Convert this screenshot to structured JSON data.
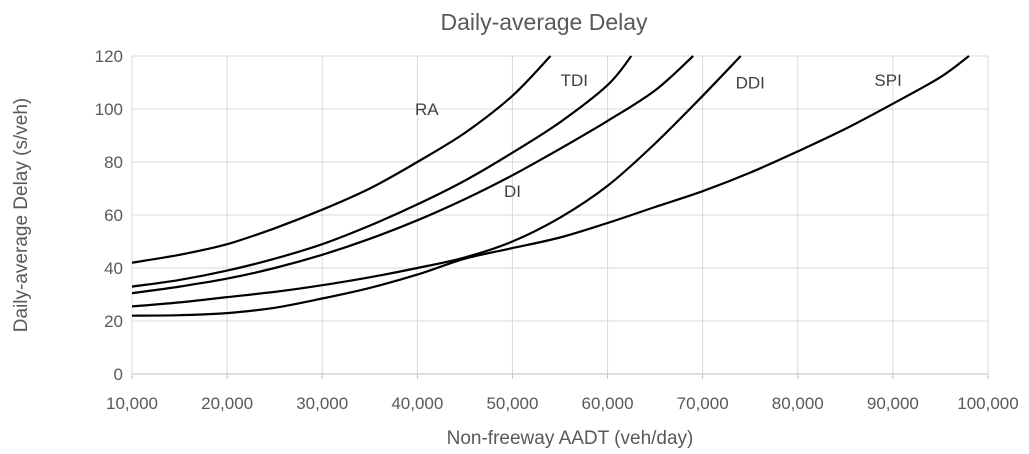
{
  "chart_data": {
    "type": "line",
    "title": "Daily-average Delay",
    "xlabel": "Non-freeway AADT (veh/day)",
    "ylabel": "Daily-average Delay (s/veh)",
    "xlim": [
      10000,
      100000
    ],
    "ylim": [
      0,
      120
    ],
    "x_ticks": [
      10000,
      20000,
      30000,
      40000,
      50000,
      60000,
      70000,
      80000,
      90000,
      100000
    ],
    "x_tick_labels": [
      "10,000",
      "20,000",
      "30,000",
      "40,000",
      "50,000",
      "60,000",
      "70,000",
      "80,000",
      "90,000",
      "100,000"
    ],
    "y_ticks": [
      0,
      20,
      40,
      60,
      80,
      100,
      120
    ],
    "y_tick_labels": [
      "0",
      "20",
      "40",
      "60",
      "80",
      "100",
      "120"
    ],
    "grid": true,
    "legend": "none",
    "series": [
      {
        "name": "RA",
        "label_at": [
          41000,
          100
        ],
        "points": [
          [
            10000,
            42
          ],
          [
            15000,
            45
          ],
          [
            20000,
            49
          ],
          [
            25000,
            55
          ],
          [
            30000,
            62
          ],
          [
            35000,
            70
          ],
          [
            40000,
            80
          ],
          [
            45000,
            91
          ],
          [
            50000,
            105
          ],
          [
            54000,
            120
          ]
        ]
      },
      {
        "name": "TDI",
        "label_at": [
          56500,
          111
        ],
        "points": [
          [
            10000,
            33
          ],
          [
            15000,
            35.5
          ],
          [
            20000,
            39
          ],
          [
            25000,
            43.5
          ],
          [
            30000,
            49
          ],
          [
            35000,
            56
          ],
          [
            40000,
            64
          ],
          [
            45000,
            73
          ],
          [
            50000,
            83.5
          ],
          [
            55000,
            95
          ],
          [
            60000,
            109
          ],
          [
            62500,
            120
          ]
        ]
      },
      {
        "name": "",
        "points": [
          [
            10000,
            30.5
          ],
          [
            15000,
            33
          ],
          [
            20000,
            36
          ],
          [
            25000,
            40
          ],
          [
            30000,
            45
          ],
          [
            35000,
            51
          ],
          [
            40000,
            58
          ],
          [
            45000,
            66
          ],
          [
            50000,
            75
          ],
          [
            55000,
            85
          ],
          [
            60000,
            95.5
          ],
          [
            65000,
            107
          ],
          [
            69000,
            120
          ]
        ]
      },
      {
        "name": "DI",
        "label_at": [
          50000,
          69
        ],
        "points": [
          [
            10000,
            25.5
          ],
          [
            15000,
            27
          ],
          [
            20000,
            29
          ],
          [
            25000,
            31
          ],
          [
            30000,
            33.5
          ],
          [
            35000,
            36.5
          ],
          [
            40000,
            40
          ],
          [
            45000,
            44
          ],
          [
            50000,
            50
          ],
          [
            55000,
            59
          ],
          [
            60000,
            71
          ],
          [
            65000,
            87
          ],
          [
            70000,
            105
          ],
          [
            74000,
            120
          ]
        ]
      },
      {
        "name": "DDI",
        "label_at": [
          75000,
          110
        ],
        "points": [
          [
            10000,
            22
          ],
          [
            15000,
            22.2
          ],
          [
            20000,
            23
          ],
          [
            25000,
            25
          ],
          [
            30000,
            28.5
          ],
          [
            35000,
            32.5
          ],
          [
            40000,
            37.5
          ],
          [
            45000,
            43.5
          ],
          [
            50000,
            47.5
          ],
          [
            55000,
            51.5
          ],
          [
            60000,
            57
          ],
          [
            65000,
            63
          ],
          [
            70000,
            69
          ],
          [
            75000,
            76
          ],
          [
            80000,
            84
          ],
          [
            85000,
            92.5
          ],
          [
            90000,
            102
          ],
          [
            95000,
            112
          ],
          [
            98000,
            120
          ]
        ]
      },
      {
        "name": "SPI",
        "label_at": [
          89500,
          111
        ]
      }
    ]
  }
}
